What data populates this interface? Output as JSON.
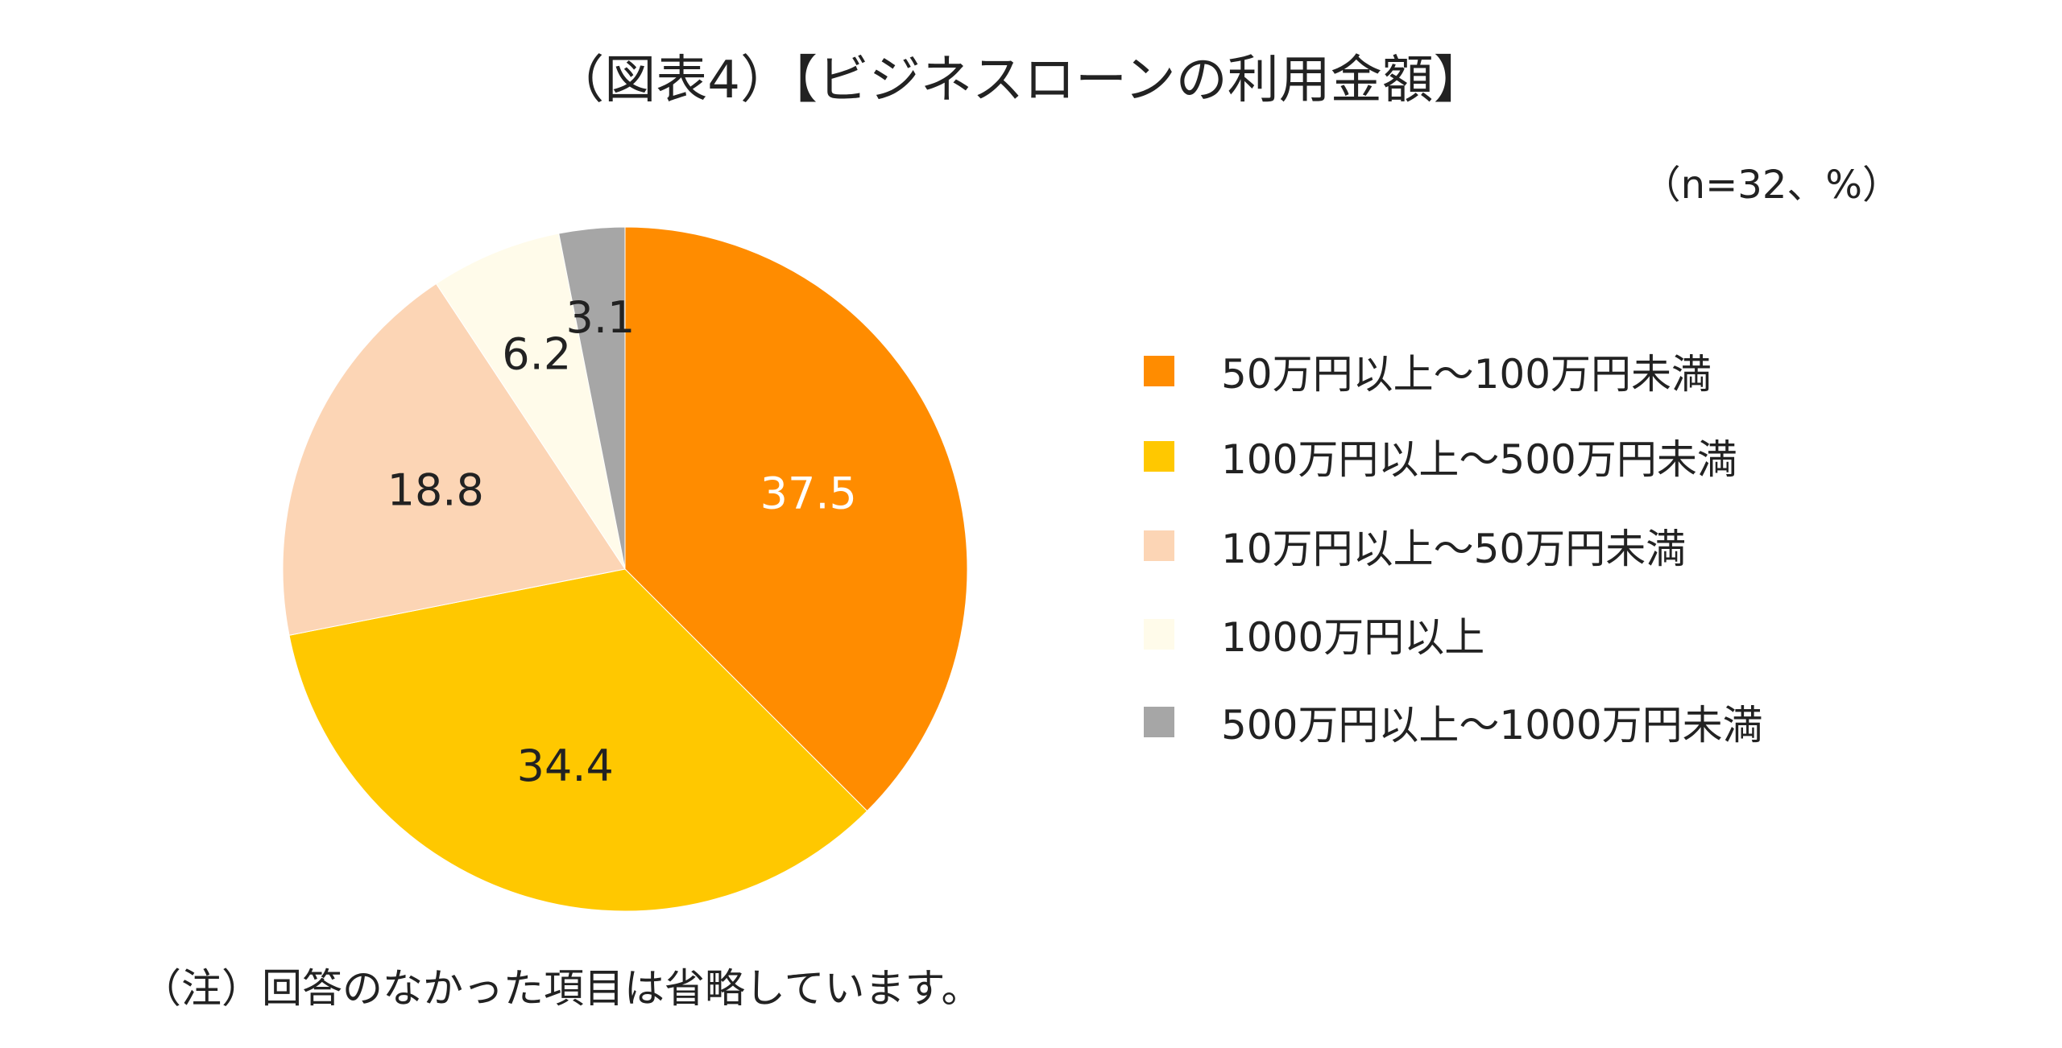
{
  "chart_data": {
    "type": "pie",
    "title": "（図表4）【ビジネスローンの利用金額】",
    "unit_note": "（n=32、%）",
    "footnote": "（注）回答のなかった項目は省略しています。",
    "slices": [
      {
        "label": "50万円以上～100万円未満",
        "value": 37.5,
        "value_label": "37.5",
        "color": "#FF8C00",
        "label_color": "#ffffff"
      },
      {
        "label": "100万円以上～500万円未満",
        "value": 34.4,
        "value_label": "34.4",
        "color": "#FFC800",
        "label_color": "#222222"
      },
      {
        "label": "10万円以上～50万円未満",
        "value": 18.8,
        "value_label": "18.8",
        "color": "#FCD5B5",
        "label_color": "#222222"
      },
      {
        "label": "1000万円以上",
        "value": 6.2,
        "value_label": "6.2",
        "color": "#FFFBEA",
        "label_color": "#222222"
      },
      {
        "label": "500万円以上～1000万円未満",
        "value": 3.1,
        "value_label": "3.1",
        "color": "#A6A6A6",
        "label_color": "#222222"
      }
    ],
    "legend_position": "right"
  }
}
